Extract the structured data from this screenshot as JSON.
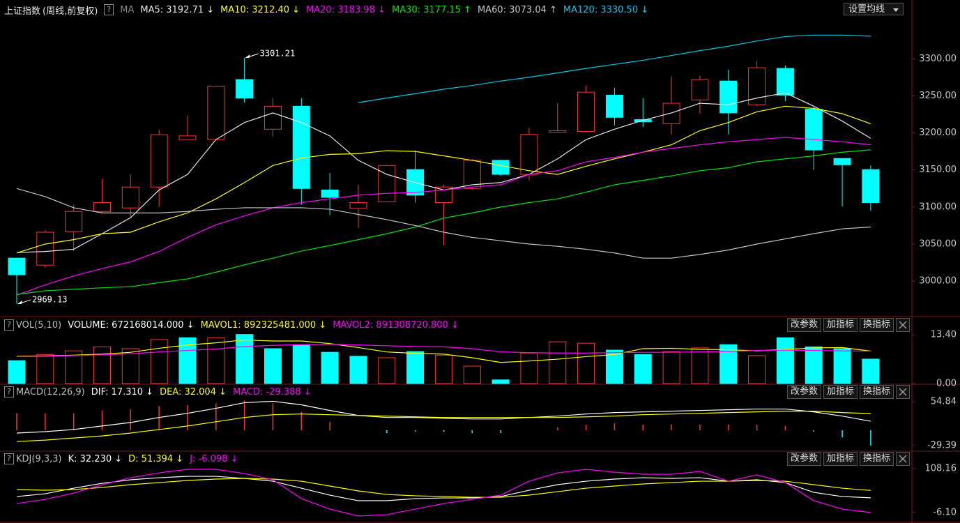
{
  "ui": {
    "help": "?",
    "set_ma": "设置均线",
    "buttons": [
      "改参数",
      "加指标",
      "换指标"
    ]
  },
  "chart_data": [
    {
      "type": "candlestick",
      "title": "上证指数",
      "subtitle": "(周线,前复权)",
      "ma_label": "MA",
      "up_color": "#ff3232",
      "down_color": "#00ffff",
      "categories": [
        null,
        null,
        null,
        null,
        null,
        null,
        null,
        null,
        null,
        null,
        null,
        null,
        null,
        null,
        null,
        null,
        null,
        null,
        null,
        null,
        null,
        null,
        null,
        null,
        null,
        null,
        null,
        null,
        null,
        null,
        null
      ],
      "open": [
        3031,
        3021.6,
        3066.8,
        3094,
        3098.7,
        3127,
        3191,
        3191,
        3272,
        3205,
        3236,
        3123,
        3098,
        3107,
        3150.5,
        3106,
        3125,
        3163,
        3144,
        3201,
        3202,
        3251,
        3218,
        3212.5,
        3244.5,
        3270,
        3238,
        3287,
        3232,
        3165.5,
        3150.5
      ],
      "high": [
        3031,
        3069,
        3103,
        3138,
        3144,
        3204,
        3224,
        3264,
        3301.21,
        3247,
        3247,
        3146,
        3130,
        3157,
        3176,
        3130,
        3165,
        3164,
        3207,
        3240,
        3264,
        3261,
        3247,
        3276,
        3277,
        3285,
        3297,
        3291,
        3235,
        3166,
        3156
      ],
      "low": [
        2969.13,
        3018,
        3040,
        3092,
        3085,
        3100,
        3191,
        3190,
        3241,
        3195,
        3103,
        3089,
        3072,
        3106,
        3106,
        3048,
        3123,
        3142,
        3136,
        3201,
        3201,
        3210,
        3208,
        3198,
        3226,
        3198,
        3236,
        3243,
        3150,
        3100.5,
        3095
      ],
      "close": [
        3008.5,
        3066,
        3094,
        3106,
        3127,
        3197.5,
        3196,
        3263,
        3247,
        3236,
        3125,
        3113,
        3106,
        3156,
        3116,
        3127,
        3163,
        3144,
        3198,
        3203,
        3255,
        3221,
        3215,
        3240,
        3272,
        3227,
        3288,
        3251,
        3177,
        3157,
        3106
      ],
      "series": [
        {
          "name": "MA5: 3192.71 ↓",
          "color": "#e8e8e8",
          "values": [
            3038.5,
            3040,
            3043,
            3064,
            3085.6,
            3123,
            3144,
            3191,
            3214,
            3227,
            3214,
            3196,
            3163,
            3144,
            3133,
            3123,
            3130,
            3133,
            3144,
            3165,
            3191,
            3205,
            3217,
            3227,
            3240,
            3238,
            3247,
            3254,
            3236,
            3216,
            3192.71
          ]
        },
        {
          "name": "MA10: 3212.40 ↓",
          "color": "#ffff00",
          "values": [
            3038,
            3050,
            3056,
            3064,
            3066,
            3080,
            3092,
            3111,
            3133,
            3156,
            3166,
            3171,
            3172,
            3176,
            3175,
            3169,
            3163,
            3156,
            3149,
            3144,
            3155,
            3165,
            3174,
            3184,
            3203,
            3214,
            3228.5,
            3236,
            3233,
            3226,
            3212.4
          ]
        },
        {
          "name": "MA20: 3183.98 ↓",
          "color": "#ff00ff",
          "values": [
            2981,
            2995,
            3007,
            3017,
            3026,
            3040,
            3059,
            3076,
            3088,
            3099,
            3106,
            3111,
            3116,
            3118.5,
            3119.5,
            3123,
            3127,
            3130,
            3144,
            3149,
            3161,
            3167,
            3174,
            3179,
            3184,
            3188,
            3191,
            3194,
            3191,
            3188,
            3183.98
          ]
        },
        {
          "name": "MA30: 3177.15 ↑",
          "color": "#00e600",
          "values": [
            2982,
            2987,
            2989,
            2991,
            2992.5,
            2998,
            3003,
            3012,
            3022,
            3031,
            3040.5,
            3048,
            3056,
            3064,
            3073,
            3085,
            3092,
            3100,
            3106,
            3111,
            3120,
            3130,
            3136,
            3142,
            3149,
            3153,
            3161,
            3165,
            3169,
            3174,
            3177.15
          ]
        },
        {
          "name": "MA60: 3073.04 ↑",
          "color": "#c8c8c8",
          "values": [
            3125,
            3114,
            3099,
            3092,
            3092,
            3092,
            3094,
            3097,
            3099,
            3099,
            3099,
            3097,
            3090,
            3083,
            3075,
            3066,
            3059,
            3054.5,
            3050,
            3047,
            3043,
            3038,
            3031,
            3031,
            3036,
            3042,
            3050,
            3057,
            3064,
            3070.5,
            3073.04
          ]
        },
        {
          "name": "MA120: 3330.50 ↓",
          "color": "#00c8e6",
          "values": [
            null,
            null,
            null,
            null,
            null,
            null,
            null,
            null,
            null,
            null,
            null,
            null,
            3241,
            3247,
            3253,
            3259,
            3264,
            3270,
            3275,
            3281,
            3287,
            3292.5,
            3298,
            3304.5,
            3311,
            3317,
            3324,
            3330,
            3332,
            3332,
            3330.5
          ]
        }
      ],
      "annotations": [
        "3301.21",
        "2969.13"
      ],
      "ylim": [
        2954,
        3353
      ],
      "yticks": [
        {
          "value": 3000,
          "label": "3000.00"
        },
        {
          "value": 3050,
          "label": "3050.00"
        },
        {
          "value": 3100,
          "label": "3100.00"
        },
        {
          "value": 3150,
          "label": "3150.00"
        },
        {
          "value": 3200,
          "label": "3200.00"
        },
        {
          "value": 3250,
          "label": "3250.00"
        },
        {
          "value": 3300,
          "label": "3300.00"
        }
      ]
    },
    {
      "type": "bar",
      "title": "VOL(5,10)",
      "up_color": "#ff3232",
      "down_color": "#00ffff",
      "series": [
        {
          "name": "VOLUME: 672168014.000 ↓",
          "color": "#ffffff",
          "style": "bar",
          "values": [
            6.3,
            8.0,
            9.0,
            10.1,
            9.6,
            12.1,
            12.6,
            12.6,
            13.5,
            9.6,
            10.7,
            8.6,
            7.5,
            7.1,
            8.8,
            7.8,
            4.8,
            1.0,
            8.4,
            11.5,
            11.1,
            9.2,
            8.0,
            8.8,
            9.8,
            10.7,
            7.7,
            12.6,
            10.1,
            9.6,
            6.72168014
          ]
        },
        {
          "name": "MAVOL1: 892325481.000 ↓",
          "color": "#ffff00",
          "style": "line",
          "values": [
            7.5,
            7.6,
            7.8,
            8.1,
            8.6,
            9.7,
            10.6,
            11.2,
            12.0,
            11.7,
            11.7,
            11.0,
            9.9,
            8.7,
            8.3,
            8.1,
            7.1,
            5.8,
            6.2,
            6.7,
            7.4,
            8.0,
            9.6,
            9.7,
            9.4,
            9.3,
            9.0,
            9.4,
            9.8,
            9.9,
            8.92325481
          ]
        },
        {
          "name": "MAVOL2: 891308720.800 ↓",
          "color": "#ff00ff",
          "style": "line",
          "values": [
            7.4,
            7.5,
            7.7,
            7.9,
            8.2,
            8.7,
            9.1,
            9.5,
            10.2,
            10.5,
            10.7,
            10.8,
            10.6,
            10.4,
            10.2,
            10.1,
            9.6,
            8.7,
            8.5,
            8.4,
            8.4,
            8.5,
            8.6,
            8.6,
            8.7,
            8.8,
            9.1,
            9.2,
            9.1,
            9.0,
            8.913087208
          ]
        }
      ],
      "ylim": [
        0,
        14.2
      ],
      "yticks": [
        {
          "value": 0,
          "label": "0.00"
        },
        {
          "value": 13.4,
          "label": "13.40"
        }
      ]
    },
    {
      "type": "macd",
      "title": "MACD(12,26,9)",
      "up_color": "#ff3232",
      "down_color": "#00ffff",
      "series": [
        {
          "name": "DIF: 17.310 ↓",
          "color": "#ffffff",
          "style": "line",
          "values": [
            -5.4,
            -2.7,
            1.4,
            8.2,
            14.9,
            24.5,
            32.6,
            42.1,
            53.0,
            55.7,
            48.9,
            38.0,
            28.5,
            24.5,
            24.5,
            23.1,
            21.7,
            21.7,
            24.5,
            27.2,
            31.2,
            34.0,
            35.3,
            36.7,
            38.0,
            39.4,
            40.8,
            40.8,
            35.3,
            27.2,
            17.31
          ]
        },
        {
          "name": "DEA: 32.004 ↓",
          "color": "#ffff00",
          "style": "line",
          "values": [
            -21.7,
            -19.0,
            -14.9,
            -10.9,
            -5.4,
            1.4,
            8.2,
            16.3,
            24.5,
            29.9,
            31.2,
            29.9,
            28.5,
            27.2,
            25.8,
            24.5,
            24.5,
            24.5,
            24.5,
            24.5,
            25.8,
            27.2,
            29.9,
            31.2,
            32.6,
            34.0,
            35.3,
            36.7,
            36.7,
            34.0,
            32.004
          ]
        },
        {
          "name": "MACD: -29.388 ↓",
          "color": "#ff00ff",
          "style": "stick",
          "values": [
            32.6,
            32.6,
            32.6,
            38.2,
            40.6,
            46.2,
            48.8,
            51.6,
            57,
            51.6,
            35.4,
            16.2,
            0,
            -5.4,
            -2.6,
            -2.8,
            -5.6,
            -5.6,
            0,
            5.4,
            10.8,
            13.6,
            10.8,
            11,
            10.8,
            10.8,
            11,
            8.2,
            -2.8,
            -13.6,
            -29.388
          ]
        }
      ],
      "ylim": [
        -38.9,
        60.3
      ],
      "yticks": [
        {
          "value": 54.84,
          "label": "54.84"
        },
        {
          "value": -29.39,
          "label": "-29.39"
        }
      ]
    },
    {
      "type": "line",
      "title": "KDJ(9,3,3)",
      "series": [
        {
          "name": "K: 32.230 ↓",
          "color": "#ffffff",
          "style": "line",
          "values": [
            35.5,
            42.8,
            57.3,
            70.0,
            79.1,
            84.5,
            88.1,
            88.1,
            82.7,
            75.4,
            57.3,
            39.2,
            24.7,
            24.7,
            30.1,
            31.9,
            31.9,
            35.5,
            51.9,
            66.4,
            75.4,
            80.9,
            84.5,
            82.7,
            84.5,
            75.4,
            79.1,
            71.8,
            46.4,
            35.5,
            32.23
          ]
        },
        {
          "name": "D: 51.394 ↓",
          "color": "#ffff00",
          "style": "line",
          "values": [
            53.7,
            51.9,
            53.7,
            59.1,
            66.4,
            71.8,
            77.3,
            80.9,
            82.7,
            80.9,
            75.4,
            62.8,
            50.1,
            41.0,
            37.4,
            35.5,
            33.7,
            33.7,
            39.2,
            48.2,
            57.3,
            62.8,
            68.2,
            71.8,
            75.4,
            75.4,
            77.3,
            75.4,
            66.4,
            57.3,
            51.394
          ]
        },
        {
          "name": "J: -6.098 ↓",
          "color": "#ff00ff",
          "style": "line",
          "values": [
            17.4,
            28.3,
            44.6,
            66.4,
            84.5,
            97.2,
            106.3,
            106.3,
            95.4,
            79.1,
            30.1,
            2.9,
            -15.2,
            -11.6,
            2.9,
            17.4,
            28.3,
            39.2,
            75.4,
            97.2,
            106.3,
            99.0,
            93.6,
            93.6,
            100.8,
            75.4,
            91.8,
            71.8,
            24.7,
            2.9,
            -6.098
          ]
        }
      ],
      "ylim": [
        -24.2,
        115.4
      ],
      "yticks": [
        {
          "value": 108.16,
          "label": "108.16"
        },
        {
          "value": -6.1,
          "label": "-6.10"
        }
      ]
    }
  ]
}
